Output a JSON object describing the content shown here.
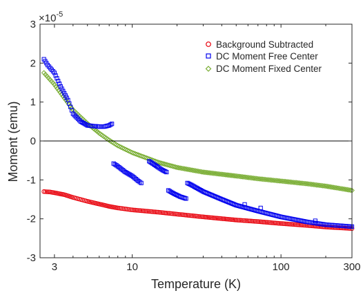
{
  "chart_data": {
    "type": "scatter",
    "xlabel": "Temperature (K)",
    "ylabel": "Moment (emu)",
    "x_scale": "log",
    "xlim": [
      2.4,
      300
    ],
    "ylim": [
      -3e-05,
      3e-05
    ],
    "y_multiplier_label": "×10",
    "y_multiplier_exponent": "-5",
    "x_ticks": [
      3,
      10,
      100,
      300
    ],
    "x_tick_labels": [
      "3",
      "10",
      "100",
      "300"
    ],
    "y_ticks": [
      -3e-05,
      -2e-05,
      -1e-05,
      0,
      1e-05,
      2e-05,
      3e-05
    ],
    "y_tick_labels": [
      "-3",
      "-2",
      "-1",
      "0",
      "1",
      "2",
      "3"
    ],
    "zero_line": true,
    "grid": false,
    "legend_position": "top-right",
    "series": [
      {
        "name": "Background Subtracted",
        "marker": "circle",
        "color": "#e8000b",
        "points": [
          [
            2.55,
            -1.3e-05
          ],
          [
            2.8,
            -1.31e-05
          ],
          [
            3,
            -1.33e-05
          ],
          [
            3.5,
            -1.38e-05
          ],
          [
            4,
            -1.45e-05
          ],
          [
            5,
            -1.55e-05
          ],
          [
            6,
            -1.62e-05
          ],
          [
            7,
            -1.68e-05
          ],
          [
            8,
            -1.72e-05
          ],
          [
            10,
            -1.77e-05
          ],
          [
            15,
            -1.83e-05
          ],
          [
            20,
            -1.88e-05
          ],
          [
            30,
            -1.95e-05
          ],
          [
            50,
            -2.03e-05
          ],
          [
            70,
            -2.07e-05
          ],
          [
            100,
            -2.12e-05
          ],
          [
            150,
            -2.17e-05
          ],
          [
            200,
            -2.21e-05
          ],
          [
            300,
            -2.25e-05
          ]
        ]
      },
      {
        "name": "DC Moment Free Center",
        "marker": "square",
        "color": "#0000ee",
        "segments": [
          [
            [
              2.55,
              2.1e-05
            ],
            [
              2.7,
              1.95e-05
            ],
            [
              3,
              1.75e-05
            ],
            [
              3.3,
              1.4e-05
            ],
            [
              3.7,
              1.05e-05
            ],
            [
              4,
              7e-06
            ],
            [
              4.5,
              5e-06
            ],
            [
              5,
              4e-06
            ],
            [
              5.5,
              3.8e-06
            ],
            [
              6,
              3.7e-06
            ],
            [
              6.5,
              3.7e-06
            ],
            [
              7,
              4e-06
            ],
            [
              7.3,
              4.4e-06
            ]
          ],
          [
            [
              7.5,
              -5.8e-06
            ],
            [
              8,
              -6.5e-06
            ],
            [
              9,
              -8e-06
            ],
            [
              10,
              -9e-06
            ],
            [
              11,
              -1.03e-05
            ],
            [
              11.5,
              -1.08e-05
            ]
          ],
          [
            [
              13,
              -5.2e-06
            ],
            [
              14,
              -6e-06
            ],
            [
              15,
              -6.8e-06
            ],
            [
              16,
              -7.5e-06
            ],
            [
              17,
              -8e-06
            ]
          ],
          [
            [
              17.5,
              -1.27e-05
            ],
            [
              19,
              -1.35e-05
            ],
            [
              21,
              -1.43e-05
            ],
            [
              23,
              -1.48e-05
            ]
          ],
          [
            [
              23.5,
              -1.08e-05
            ],
            [
              25,
              -1.13e-05
            ],
            [
              30,
              -1.3e-05
            ],
            [
              40,
              -1.5e-05
            ],
            [
              50,
              -1.65e-05
            ],
            [
              70,
              -1.8e-05
            ],
            [
              100,
              -1.95e-05
            ],
            [
              150,
              -2.08e-05
            ],
            [
              200,
              -2.15e-05
            ],
            [
              300,
              -2.2e-05
            ]
          ]
        ],
        "outliers": [
          [
            57,
            -1.63e-05
          ],
          [
            73,
            -1.72e-05
          ],
          [
            170,
            -2.05e-05
          ]
        ]
      },
      {
        "name": "DC Moment Fixed Center",
        "marker": "diamond",
        "color": "#77ac30",
        "points": [
          [
            2.55,
            1.75e-05
          ],
          [
            3,
            1.45e-05
          ],
          [
            3.5,
            1.1e-05
          ],
          [
            4,
            8e-06
          ],
          [
            5,
            4.5e-06
          ],
          [
            6,
            2e-06
          ],
          [
            7,
            2e-07
          ],
          [
            8,
            -1.2e-06
          ],
          [
            10,
            -3e-06
          ],
          [
            15,
            -5.5e-06
          ],
          [
            20,
            -6.8e-06
          ],
          [
            30,
            -8e-06
          ],
          [
            50,
            -9e-06
          ],
          [
            70,
            -9.7e-06
          ],
          [
            100,
            -1.03e-05
          ],
          [
            150,
            -1.1e-05
          ],
          [
            200,
            -1.16e-05
          ],
          [
            300,
            -1.27e-05
          ]
        ]
      }
    ]
  }
}
